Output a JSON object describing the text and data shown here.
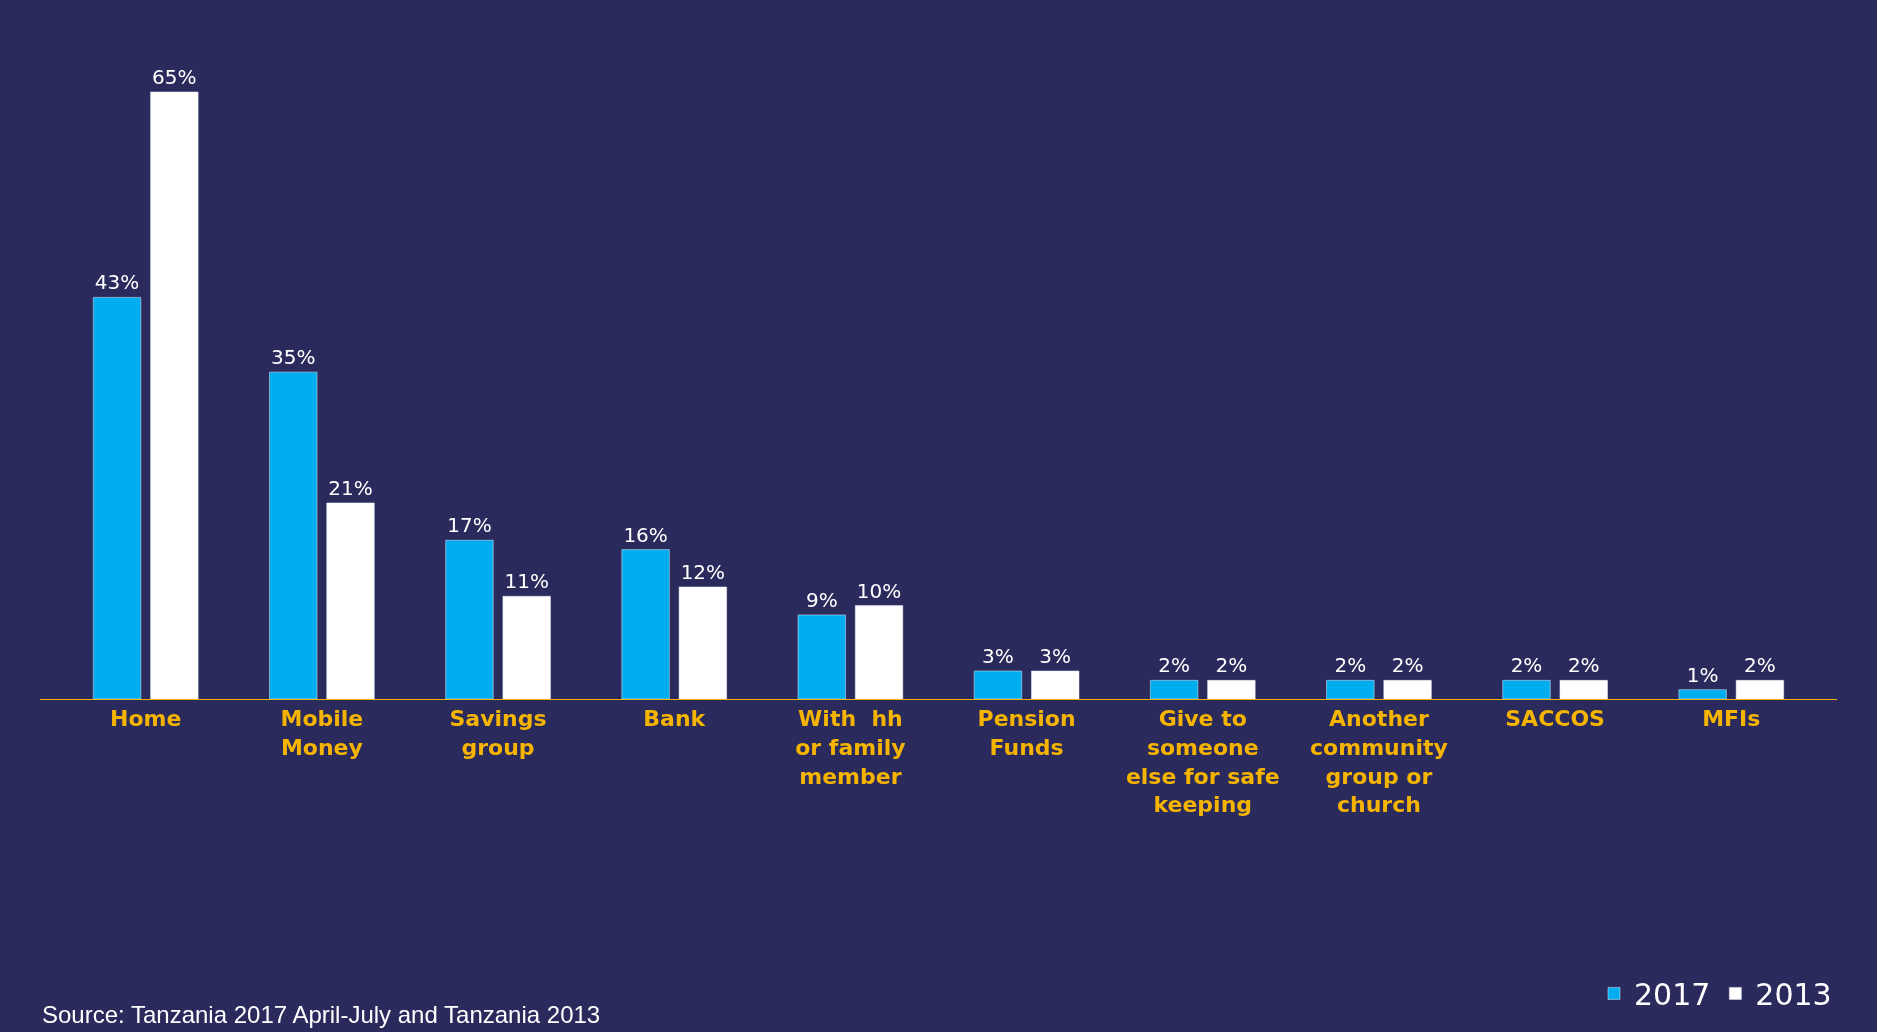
{
  "chart_data": {
    "type": "bar",
    "categories": [
      "Home",
      "Mobile\nMoney",
      "Savings\ngroup",
      "Bank",
      "With  hh\nor family\nmember",
      "Pension\nFunds",
      "Give to\nsomeone\nelse for safe\nkeeping",
      "Another\ncommunity\ngroup or\nchurch",
      "SACCOS",
      "MFIs"
    ],
    "series": [
      {
        "name": "2017",
        "color": "#00aeef",
        "values": [
          43,
          35,
          17,
          16,
          9,
          3,
          2,
          2,
          2,
          1
        ],
        "value_labels": [
          "43%",
          "35%",
          "17%",
          "16%",
          "9%",
          "3%",
          "2%",
          "2%",
          "2%",
          "1%"
        ]
      },
      {
        "name": "2013",
        "color": "#ffffff",
        "values": [
          65,
          21,
          11,
          12,
          10,
          3,
          2,
          2,
          2,
          2
        ],
        "value_labels": [
          "65%",
          "21%",
          "11%",
          "12%",
          "10%",
          "3%",
          "2%",
          "2%",
          "2%",
          "2%"
        ]
      }
    ],
    "legend": "bottom right",
    "grid": false,
    "annotations": [
      "Source: Tanzania 2017 April-July and Tanzania 2013"
    ]
  }
}
